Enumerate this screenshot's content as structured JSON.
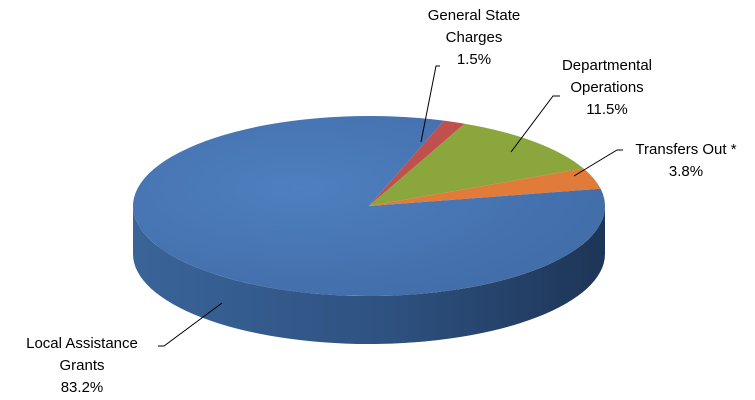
{
  "chart_data": {
    "type": "pie",
    "style": "3d",
    "legend": "none",
    "slices": [
      {
        "name": "General State Charges",
        "label_lines": [
          "General State",
          "Charges"
        ],
        "value": 1.5,
        "value_label": "1.5%",
        "color": "#c0504d",
        "side_color": "#8a3533"
      },
      {
        "name": "Departmental Operations",
        "label_lines": [
          "Departmental",
          "Operations"
        ],
        "value": 11.5,
        "value_label": "11.5%",
        "color": "#8aa63d",
        "side_color": "#5f7528"
      },
      {
        "name": "Transfers Out *",
        "label_lines": [
          "Transfers Out *"
        ],
        "value": 3.8,
        "value_label": "3.8%",
        "color": "#e07b39",
        "side_color": "#a65826"
      },
      {
        "name": "Local Assistance Grants",
        "label_lines": [
          "Local Assistance",
          "Grants"
        ],
        "value": 83.2,
        "value_label": "83.2%",
        "color": "#4472b0",
        "side_color": "#2b4a74"
      }
    ]
  }
}
